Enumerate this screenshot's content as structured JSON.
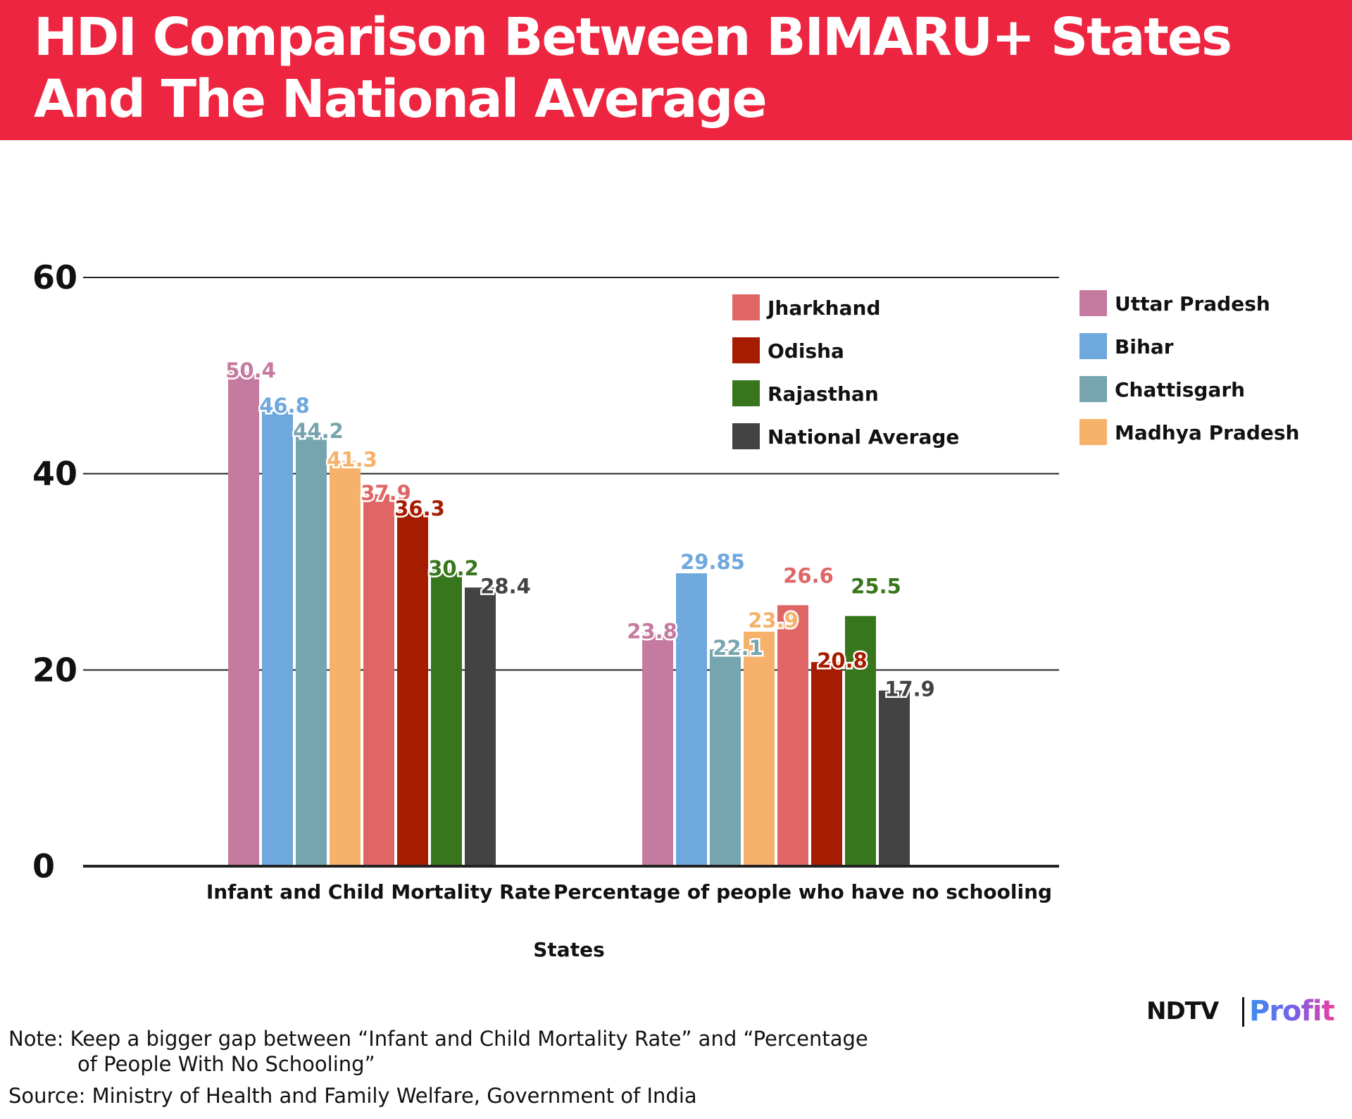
{
  "title": {
    "line1": "HDI Comparison Between BIMARU+ States",
    "line2": "And The National Average"
  },
  "colors": {
    "banner": "#ee2540",
    "Uttar Pradesh": "#c57aa0",
    "Bihar": "#6fa8dc",
    "Chattisgarh": "#76a5af",
    "Madhya Pradesh": "#f6b26b",
    "Jharkhand": "#e06666",
    "Odisha": "#a61c00",
    "Rajasthan": "#38761d",
    "National Average": "#434343"
  },
  "chart_data": {
    "type": "bar",
    "title": "HDI Comparison Between BIMARU+ States And The National Average",
    "xlabel": "States",
    "ylabel": "",
    "ylim": [
      0,
      60
    ],
    "yticks": [
      0,
      20,
      40,
      60
    ],
    "grid": true,
    "legend_position": "top-right",
    "categories": [
      "Infant and Child Mortality Rate",
      "Percentage of people who have no schooling"
    ],
    "series": [
      {
        "name": "Uttar Pradesh",
        "values": [
          50.4,
          23.8
        ],
        "labels": [
          "50.4",
          "23.8"
        ]
      },
      {
        "name": "Bihar",
        "values": [
          46.8,
          29.85
        ],
        "labels": [
          "46.8",
          "29.85"
        ]
      },
      {
        "name": "Chattisgarh",
        "values": [
          44.2,
          22.1
        ],
        "labels": [
          "44.2",
          "22.1"
        ]
      },
      {
        "name": "Madhya Pradesh",
        "values": [
          41.3,
          23.9
        ],
        "labels": [
          "41.3",
          "23.9"
        ]
      },
      {
        "name": "Jharkhand",
        "values": [
          37.9,
          26.6
        ],
        "labels": [
          "37.9",
          "26.6"
        ]
      },
      {
        "name": "Odisha",
        "values": [
          36.3,
          20.8
        ],
        "labels": [
          "36.3",
          "20.8"
        ]
      },
      {
        "name": "Rajasthan",
        "values": [
          30.2,
          25.5
        ],
        "labels": [
          "30.2",
          "25.5"
        ]
      },
      {
        "name": "National Average",
        "values": [
          28.4,
          17.9
        ],
        "labels": [
          "28.4",
          "17.9"
        ]
      }
    ],
    "legend_left": [
      "Jharkhand",
      "Odisha",
      "Rajasthan",
      "National Average"
    ],
    "legend_right": [
      "Uttar Pradesh",
      "Bihar",
      "Chattisgarh",
      "Madhya Pradesh"
    ]
  },
  "logo": {
    "brand": "NDTV",
    "product": "Profit"
  },
  "footer": {
    "note_line1": "Note: Keep a bigger gap between “Infant and Child Mortality Rate” and “Percentage",
    "note_line2": "of People With No Schooling”",
    "source": "Source: Ministry of Health and Family Welfare, Government of India"
  }
}
